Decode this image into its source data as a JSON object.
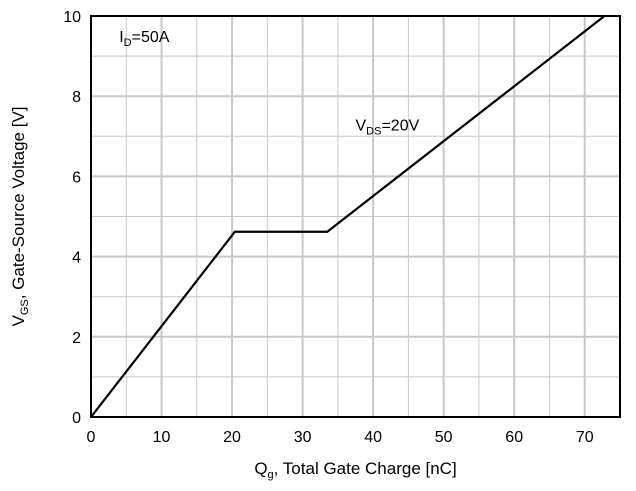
{
  "chart_data": {
    "type": "line",
    "xlabel": {
      "main": "Q",
      "sub": "g",
      "rest": ", Total Gate Charge [nC]"
    },
    "ylabel": {
      "main": "V",
      "sub": "GS",
      "rest": ", Gate-Source Voltage [V]"
    },
    "xlim": [
      0,
      75
    ],
    "ylim": [
      0,
      10
    ],
    "xticks": [
      0,
      10,
      20,
      30,
      40,
      50,
      60,
      70
    ],
    "yticks": [
      0,
      2,
      4,
      6,
      8,
      10
    ],
    "grid": true,
    "series": [
      {
        "x": [
          0,
          20.4,
          33.5,
          72.8
        ],
        "y": [
          0,
          4.62,
          4.62,
          10
        ]
      }
    ],
    "annotations": [
      {
        "main": "I",
        "sub": "D",
        "rest": "=50A",
        "x": 4,
        "y": 9.35
      },
      {
        "main": "V",
        "sub": "DS",
        "rest": "=20V",
        "x": 37.5,
        "y": 7.15
      }
    ]
  }
}
